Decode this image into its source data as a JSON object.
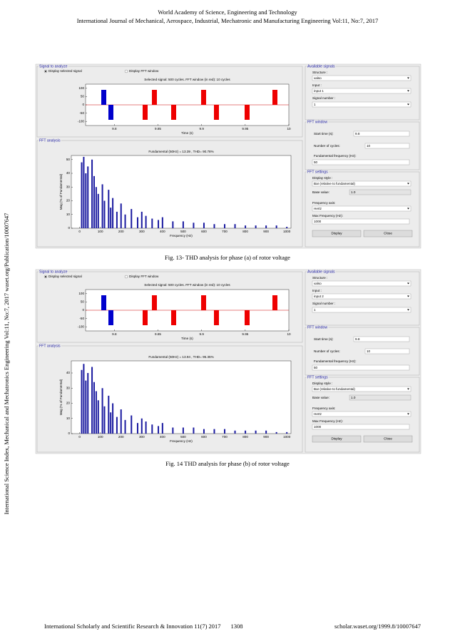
{
  "header": {
    "line1": "World Academy of Science, Engineering and Technology",
    "line2": "International Journal of Mechanical, Aerospace, Industrial, Mechatronic and Manufacturing Engineering Vol:11, No:7, 2017"
  },
  "side_text": "International Science Index, Mechanical and Mechatronics Engineering Vol:11, No:7, 2017 waset.org/Publication/10007647",
  "figures": [
    {
      "caption": "Fig. 13- THD analysis for phase (a) of rotor voltage",
      "gui": {
        "signal_panel_title": "Signal to analyze",
        "radio1": "Display selected signal",
        "radio2": "Display FFT window",
        "signal_title": "Selected signal: 500 cycles. FFT window (in red): 10 cycles",
        "signal_xlim": [
          9.767,
          10
        ],
        "signal_xticks": [
          9.8,
          9.85,
          9.9,
          9.95,
          10
        ],
        "signal_ylim": [
          -125,
          125
        ],
        "signal_yticks": [
          100,
          50,
          0,
          -50,
          -100
        ],
        "signal_xlabel": "Time (s)",
        "fft_panel_title": "FFT analysis",
        "fft_title": "Fundamental (50Hz) = 13.39 , THD= 90.78%",
        "fft_xlim": [
          -40,
          1020
        ],
        "fft_xticks": [
          0,
          100,
          200,
          300,
          400,
          500,
          600,
          700,
          800,
          900,
          1000
        ],
        "fft_ylim": [
          0,
          53
        ],
        "fft_yticks": [
          0,
          10,
          20,
          30,
          40,
          50
        ],
        "fft_xlabel": "Frequency (Hz)",
        "fft_ylabel": "Mag (% of Fundamental)",
        "fft_color": "#1a1aa0",
        "fft_freqs": [
          10,
          20,
          30,
          40,
          60,
          70,
          80,
          90,
          110,
          120,
          140,
          150,
          160,
          180,
          200,
          220,
          250,
          280,
          300,
          320,
          350,
          380,
          400,
          450,
          500,
          550,
          600,
          650,
          700,
          750,
          800,
          850,
          900,
          950,
          1000
        ],
        "fft_values": [
          48,
          52,
          40,
          45,
          50,
          38,
          30,
          25,
          32,
          20,
          28,
          15,
          22,
          12,
          18,
          10,
          14,
          8,
          12,
          9,
          7,
          6,
          8,
          5,
          5,
          4,
          4,
          3,
          3,
          3,
          2,
          2,
          2,
          2,
          1
        ],
        "available_title": "Available signals",
        "structure_label": "Structure :",
        "structure_value": "valso",
        "input_label": "Input :",
        "input_value": "input 1",
        "signal_number_label": "Signal number :",
        "signal_number_value": "1",
        "fft_window_title": "FFT window",
        "start_time_label": "Start time (s):",
        "start_time_value": "9.8",
        "cycles_label": "Number of cycles:",
        "cycles_value": "10",
        "fund_label": "Fundamental frequency (Hz):",
        "fund_value": "50",
        "settings_title": "FFT settings",
        "display_style_label": "Display style :",
        "display_style_value": "Bar (relative to fundamental)",
        "base_label": "Base value:",
        "base_value": "1.0",
        "freq_axis_label": "Frequency axis:",
        "freq_axis_value": "Hertz",
        "max_freq_label": "Max Frequency (Hz):",
        "max_freq_value": "1000",
        "display_button": "Display",
        "close_button": "Close"
      }
    },
    {
      "caption": "Fig. 14 THD analysis for phase (b) of rotor voltage",
      "gui": {
        "signal_panel_title": "Signal to analyze",
        "radio1": "Display selected signal",
        "radio2": "Display FFT window",
        "signal_title": "Selected signal: 500 cycles. FFT window (in red): 10 cycles",
        "signal_xlim": [
          9.767,
          10
        ],
        "signal_xticks": [
          9.8,
          9.85,
          9.9,
          9.95,
          10
        ],
        "signal_ylim": [
          -125,
          125
        ],
        "signal_yticks": [
          100,
          50,
          0,
          -50,
          -100
        ],
        "signal_xlabel": "Time (s)",
        "fft_panel_title": "FFT analysis",
        "fft_title": "Fundamental (50Hz) = 13.94 , THD= 95.35%",
        "fft_xlim": [
          -40,
          1020
        ],
        "fft_xticks": [
          0,
          100,
          200,
          300,
          400,
          500,
          600,
          700,
          800,
          900,
          1000
        ],
        "fft_ylim": [
          0,
          48
        ],
        "fft_yticks": [
          0,
          10,
          20,
          30,
          40
        ],
        "fft_xlabel": "Frequency (Hz)",
        "fft_ylabel": "Mag (% of Fundamental)",
        "fft_color": "#1a1aa0",
        "fft_freqs": [
          10,
          20,
          30,
          40,
          60,
          70,
          80,
          90,
          110,
          120,
          140,
          150,
          160,
          180,
          200,
          220,
          250,
          280,
          300,
          320,
          350,
          380,
          400,
          450,
          500,
          550,
          600,
          650,
          700,
          750,
          800,
          850,
          900,
          950,
          1000
        ],
        "fft_values": [
          42,
          46,
          35,
          40,
          44,
          34,
          28,
          22,
          30,
          18,
          25,
          14,
          20,
          11,
          16,
          9,
          12,
          7,
          10,
          8,
          6,
          5,
          7,
          4,
          4,
          4,
          3,
          3,
          3,
          2,
          2,
          2,
          2,
          1,
          1
        ],
        "available_title": "Available signals",
        "structure_label": "Structure :",
        "structure_value": "valso",
        "input_label": "Input :",
        "input_value": "input 2",
        "signal_number_label": "Signal number :",
        "signal_number_value": "1",
        "fft_window_title": "FFT window",
        "start_time_label": "Start time (s):",
        "start_time_value": "9.8",
        "cycles_label": "Number of cycles:",
        "cycles_value": "10",
        "fund_label": "Fundamental frequency (Hz):",
        "fund_value": "50",
        "settings_title": "FFT settings",
        "display_style_label": "Display style :",
        "display_style_value": "Bar (relative to fundamental)",
        "base_label": "Base value:",
        "base_value": "1.0",
        "freq_axis_label": "Frequency axis:",
        "freq_axis_value": "Hertz",
        "max_freq_label": "Max Frequency (Hz):",
        "max_freq_value": "1000",
        "display_button": "Display",
        "close_button": "Close"
      }
    }
  ],
  "footer": {
    "left": "International Scholarly and Scientific Research & Innovation 11(7) 2017",
    "page": "1308",
    "right": "scholar.waset.org/1999.8/10007647"
  }
}
